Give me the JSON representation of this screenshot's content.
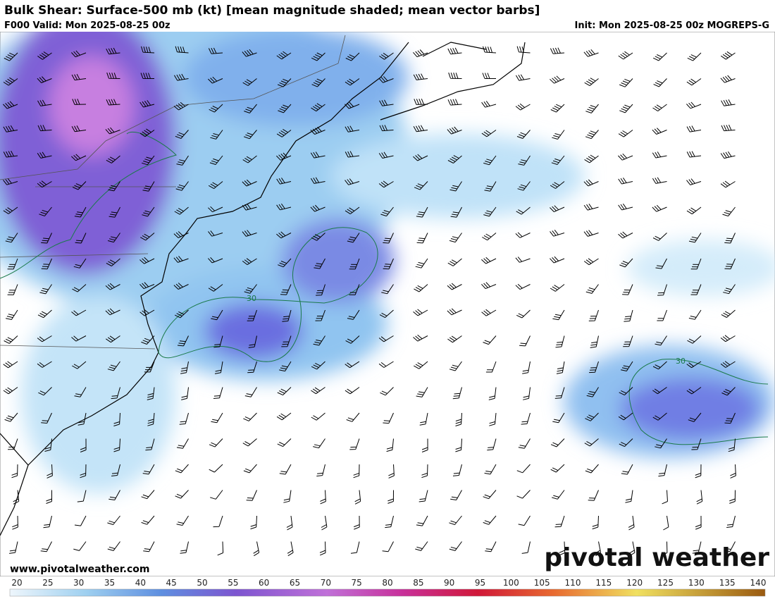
{
  "header": {
    "title": "Bulk Shear: Surface-500 mb (kt) [mean magnitude shaded; mean vector barbs]",
    "valid": "F000 Valid: Mon 2025-08-25 00z",
    "init": "Init: Mon 2025-08-25 00z MOGREPS-G"
  },
  "map": {
    "contour_labels": [
      "30",
      "30"
    ]
  },
  "footer": {
    "website": "www.pivotalweather.com",
    "logo": "pivotal weather"
  },
  "colorbar": {
    "ticks": [
      20,
      25,
      30,
      35,
      40,
      45,
      50,
      55,
      60,
      65,
      70,
      75,
      80,
      85,
      90,
      95,
      100,
      105,
      110,
      115,
      120,
      125,
      130,
      135,
      140
    ]
  }
}
